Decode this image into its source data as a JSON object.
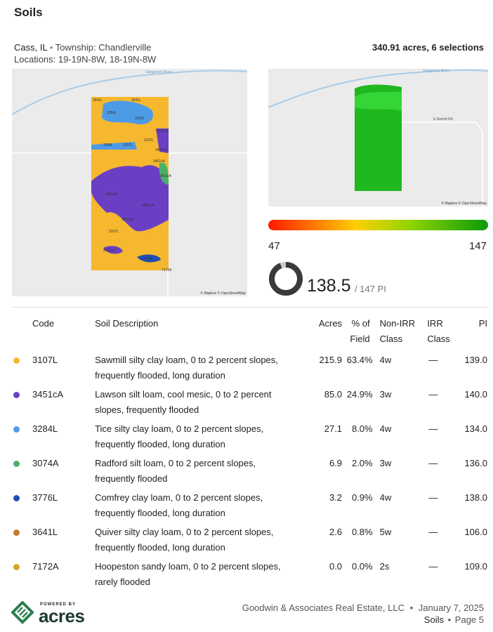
{
  "header": {
    "title": "Soils",
    "location": "Cass, IL",
    "township": "Township: Chandlerville",
    "locations": "Locations: 19-19N-8W, 18-19N-8W",
    "summary": "340.91 acres, 6 selections"
  },
  "left_map": {
    "river": "Sangamon River",
    "attribution": "© Mapbox © OpenStreetMap",
    "labels": [
      "3641L",
      "3641L",
      "3284L",
      "3284L",
      "3451cA",
      "3284L",
      "3107L",
      "3107L",
      "3451cA",
      "3451cA",
      "3451cA",
      "3451cA",
      "3451cA",
      "3451cA",
      "3107L",
      "3451cA",
      "3776L",
      "7172A"
    ]
  },
  "right_map": {
    "river": "Sangamon River",
    "road": "E Barrett Rd",
    "attribution": "© Mapbox © OpenStreetMap"
  },
  "scale": {
    "min": 47,
    "max": 147
  },
  "pi": {
    "value": 138.5,
    "max_label": "/ 147 PI"
  },
  "table": {
    "headers": [
      "Code",
      "Soil Description",
      "Acres",
      "% of Field",
      "Non-IRR Class",
      "IRR Class",
      "PI"
    ],
    "rows": [
      {
        "color": "#f5b82e",
        "cells": [
          "3107L",
          "Sawmill silty clay loam, 0 to 2 percent slopes, frequently flooded, long duration",
          "215.9",
          "63.4%",
          "4w",
          "—",
          "139.0"
        ]
      },
      {
        "color": "#6a3fc4",
        "cells": [
          "3451cA",
          "Lawson silt loam, cool mesic, 0 to 2 percent slopes, frequently flooded",
          "85.0",
          "24.9%",
          "3w",
          "—",
          "140.0"
        ]
      },
      {
        "color": "#4d9be6",
        "cells": [
          "3284L",
          "Tice silty clay loam, 0 to 2 percent slopes, frequently flooded, long duration",
          "27.1",
          "8.0%",
          "4w",
          "—",
          "134.0"
        ]
      },
      {
        "color": "#4caf6a",
        "cells": [
          "3074A",
          "Radford silt loam, 0 to 2 percent slopes, frequently flooded",
          "6.9",
          "2.0%",
          "3w",
          "—",
          "136.0"
        ]
      },
      {
        "color": "#1f4fb5",
        "cells": [
          "3776L",
          "Comfrey clay loam, 0 to 2 percent slopes, frequently flooded, long duration",
          "3.2",
          "0.9%",
          "4w",
          "—",
          "138.0"
        ]
      },
      {
        "color": "#c47a2a",
        "cells": [
          "3641L",
          "Quiver silty clay loam, 0 to 2 percent slopes, frequently flooded, long duration",
          "2.6",
          "0.8%",
          "5w",
          "—",
          "106.0"
        ]
      },
      {
        "color": "#d4a62a",
        "cells": [
          "7172A",
          "Hoopeston sandy loam, 0 to 2 percent slopes, rarely flooded",
          "0.0",
          "0.0%",
          "2s",
          "—",
          "109.0"
        ]
      }
    ]
  },
  "footer": {
    "powered_by": "POWERED BY",
    "brand": "acres",
    "company": "Goodwin & Associates Real Estate, LLC",
    "date": "January 7, 2025",
    "section": "Soils",
    "page": "Page 5"
  }
}
